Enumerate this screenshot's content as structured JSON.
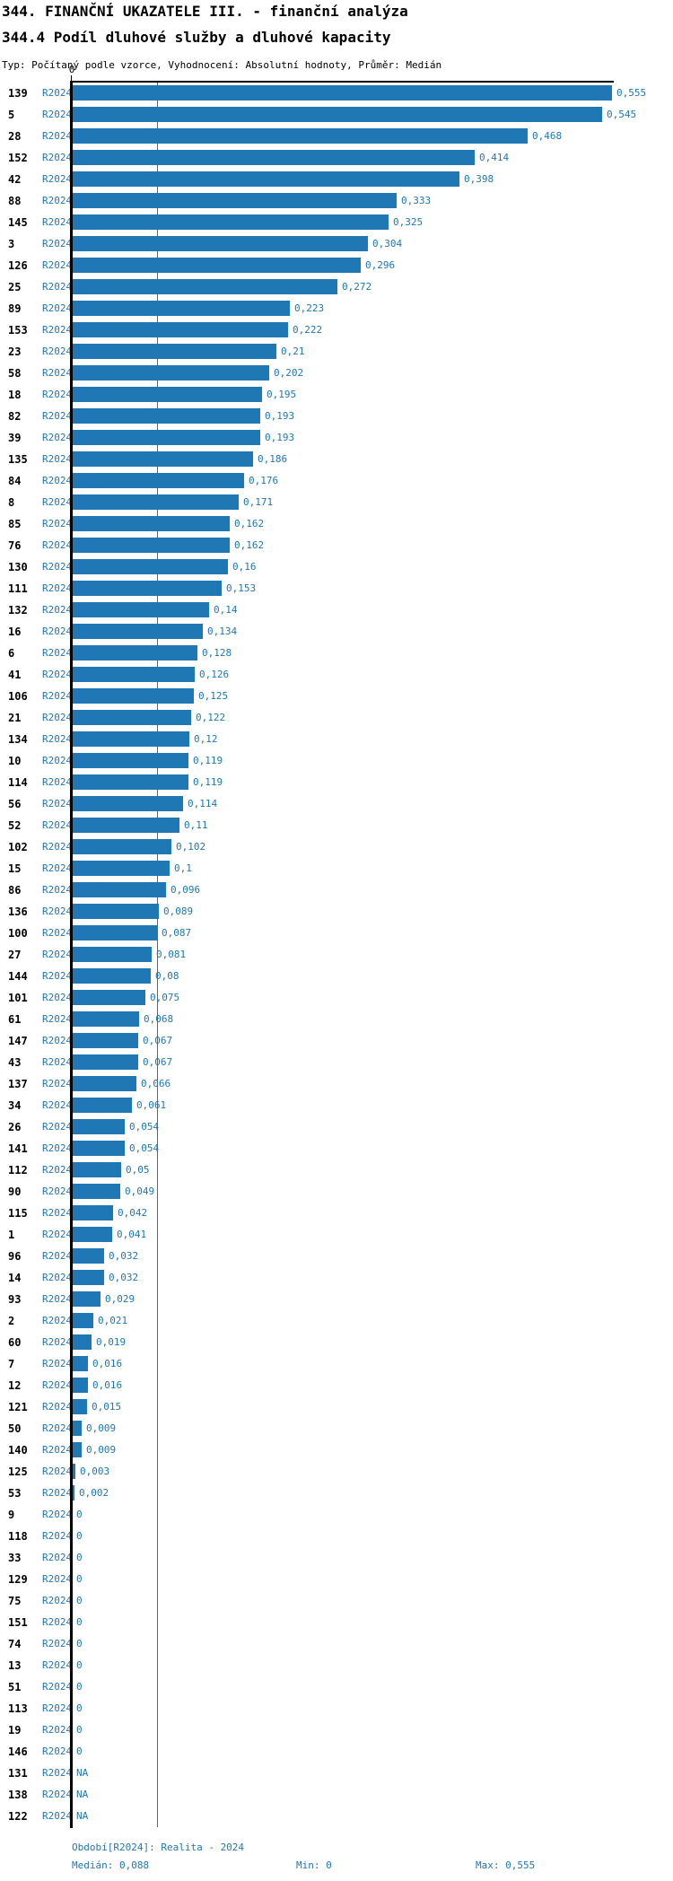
{
  "header": {
    "title": "344. FINANČNÍ UKAZATELE III. - finanční analýza",
    "subtitle": "344.4 Podíl dluhové služby a dluhové kapacity",
    "meta": "Typ: Počítaný podle vzorce, Vyhodnocení: Absolutní hodnoty, Průměr: Medián"
  },
  "axis": {
    "zero_label": "0"
  },
  "colors": {
    "bar": "#1f77b4",
    "series_label": "#1f77b4",
    "value_label": "#1f77b4",
    "median_line": "#1f77b4",
    "axis": "#000000",
    "title": "#000000"
  },
  "footer": {
    "period": "Období[R2024]: Realita - 2024",
    "median": "Medián: 0,088",
    "min": "Min: 0",
    "max": "Max: 0,555"
  },
  "chart_data": {
    "type": "bar",
    "orientation": "horizontal",
    "series_label": "R2024",
    "title": "344.4 Podíl dluhové služby a dluhové kapacity",
    "xlabel": "",
    "ylabel": "",
    "xlim": [
      0,
      0.62
    ],
    "grid": false,
    "median": 0.088,
    "min": 0,
    "max": 0.555,
    "categories": [
      "139",
      "5",
      "28",
      "152",
      "42",
      "88",
      "145",
      "3",
      "126",
      "25",
      "89",
      "153",
      "23",
      "58",
      "18",
      "82",
      "39",
      "135",
      "84",
      "8",
      "85",
      "76",
      "130",
      "111",
      "132",
      "16",
      "6",
      "41",
      "106",
      "21",
      "134",
      "10",
      "114",
      "56",
      "52",
      "102",
      "15",
      "86",
      "136",
      "100",
      "27",
      "144",
      "101",
      "61",
      "147",
      "43",
      "137",
      "34",
      "26",
      "141",
      "112",
      "90",
      "115",
      "1",
      "96",
      "14",
      "93",
      "2",
      "60",
      "7",
      "12",
      "121",
      "50",
      "140",
      "125",
      "53",
      "9",
      "118",
      "33",
      "129",
      "75",
      "151",
      "74",
      "13",
      "51",
      "113",
      "19",
      "146",
      "131",
      "138",
      "122"
    ],
    "values": [
      0.555,
      0.545,
      0.468,
      0.414,
      0.398,
      0.333,
      0.325,
      0.304,
      0.296,
      0.272,
      0.223,
      0.222,
      0.21,
      0.202,
      0.195,
      0.193,
      0.193,
      0.186,
      0.176,
      0.171,
      0.162,
      0.162,
      0.16,
      0.153,
      0.14,
      0.134,
      0.128,
      0.126,
      0.125,
      0.122,
      0.12,
      0.119,
      0.119,
      0.114,
      0.11,
      0.102,
      0.1,
      0.096,
      0.089,
      0.087,
      0.081,
      0.08,
      0.075,
      0.068,
      0.067,
      0.067,
      0.066,
      0.061,
      0.054,
      0.054,
      0.05,
      0.049,
      0.042,
      0.041,
      0.032,
      0.032,
      0.029,
      0.021,
      0.019,
      0.016,
      0.016,
      0.015,
      0.009,
      0.009,
      0.003,
      0.002,
      0,
      0,
      0,
      0,
      0,
      0,
      0,
      0,
      0,
      0,
      0,
      0,
      null,
      null,
      null
    ],
    "value_labels": [
      "0,555",
      "0,545",
      "0,468",
      "0,414",
      "0,398",
      "0,333",
      "0,325",
      "0,304",
      "0,296",
      "0,272",
      "0,223",
      "0,222",
      "0,21",
      "0,202",
      "0,195",
      "0,193",
      "0,193",
      "0,186",
      "0,176",
      "0,171",
      "0,162",
      "0,162",
      "0,16",
      "0,153",
      "0,14",
      "0,134",
      "0,128",
      "0,126",
      "0,125",
      "0,122",
      "0,12",
      "0,119",
      "0,119",
      "0,114",
      "0,11",
      "0,102",
      "0,1",
      "0,096",
      "0,089",
      "0,087",
      "0,081",
      "0,08",
      "0,075",
      "0,068",
      "0,067",
      "0,067",
      "0,066",
      "0,061",
      "0,054",
      "0,054",
      "0,05",
      "0,049",
      "0,042",
      "0,041",
      "0,032",
      "0,032",
      "0,029",
      "0,021",
      "0,019",
      "0,016",
      "0,016",
      "0,015",
      "0,009",
      "0,009",
      "0,003",
      "0,002",
      "0",
      "0",
      "0",
      "0",
      "0",
      "0",
      "0",
      "0",
      "0",
      "0",
      "0",
      "0",
      "NA",
      "NA",
      "NA"
    ]
  }
}
